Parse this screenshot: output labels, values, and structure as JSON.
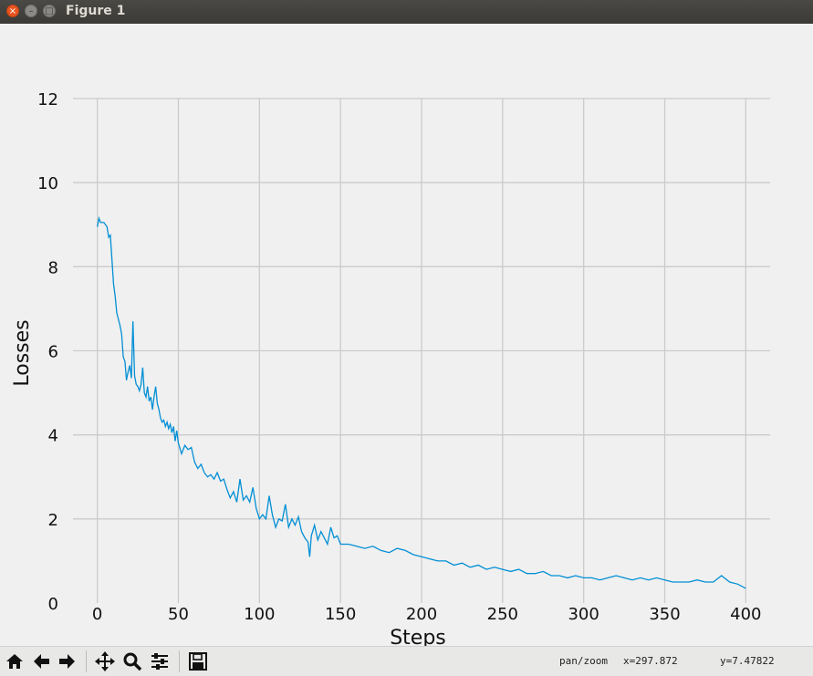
{
  "window": {
    "title": "Figure 1"
  },
  "toolbar": {
    "buttons": [
      "home-icon",
      "back-arrow-icon",
      "forward-arrow-icon",
      "pan-move-icon",
      "zoom-magnifier-icon",
      "configure-subplots-icon",
      "save-icon"
    ],
    "mode": "pan/zoom",
    "x_readout": "x=297.872",
    "y_readout": "y=7.47822"
  },
  "colors": {
    "line": "#008fd5",
    "grid": "#cbcbcb",
    "background": "#f0f0f0"
  },
  "chart_data": {
    "type": "line",
    "xlabel": "Steps",
    "ylabel": "Losses",
    "xlim": [
      -15,
      415
    ],
    "ylim": [
      0,
      12
    ],
    "xticks": [
      0,
      50,
      100,
      150,
      200,
      250,
      300,
      350,
      400
    ],
    "yticks": [
      0,
      2,
      4,
      6,
      8,
      10,
      12
    ],
    "grid": true,
    "series": [
      {
        "points": [
          [
            0,
            8.95
          ],
          [
            1,
            9.15
          ],
          [
            2,
            9.05
          ],
          [
            4,
            9.05
          ],
          [
            6,
            8.95
          ],
          [
            7,
            8.7
          ],
          [
            8,
            8.75
          ],
          [
            9,
            8.2
          ],
          [
            10,
            7.6
          ],
          [
            11,
            7.3
          ],
          [
            12,
            6.9
          ],
          [
            14,
            6.6
          ],
          [
            15,
            6.4
          ],
          [
            16,
            5.85
          ],
          [
            17,
            5.75
          ],
          [
            18,
            5.3
          ],
          [
            19,
            5.5
          ],
          [
            20,
            5.65
          ],
          [
            21,
            5.35
          ],
          [
            22,
            6.7
          ],
          [
            23,
            5.4
          ],
          [
            24,
            5.2
          ],
          [
            25,
            5.15
          ],
          [
            26,
            5.05
          ],
          [
            27,
            5.2
          ],
          [
            28,
            5.6
          ],
          [
            29,
            5.0
          ],
          [
            30,
            4.9
          ],
          [
            31,
            5.15
          ],
          [
            32,
            4.8
          ],
          [
            33,
            4.9
          ],
          [
            34,
            4.6
          ],
          [
            35,
            4.9
          ],
          [
            36,
            5.15
          ],
          [
            37,
            4.75
          ],
          [
            38,
            4.6
          ],
          [
            39,
            4.4
          ],
          [
            40,
            4.3
          ],
          [
            41,
            4.35
          ],
          [
            42,
            4.2
          ],
          [
            43,
            4.3
          ],
          [
            44,
            4.15
          ],
          [
            45,
            4.25
          ],
          [
            46,
            4.05
          ],
          [
            47,
            4.2
          ],
          [
            48,
            3.85
          ],
          [
            49,
            4.1
          ],
          [
            50,
            3.8
          ],
          [
            52,
            3.55
          ],
          [
            54,
            3.75
          ],
          [
            56,
            3.65
          ],
          [
            58,
            3.7
          ],
          [
            60,
            3.35
          ],
          [
            62,
            3.2
          ],
          [
            64,
            3.3
          ],
          [
            66,
            3.1
          ],
          [
            68,
            3.0
          ],
          [
            70,
            3.05
          ],
          [
            72,
            2.95
          ],
          [
            74,
            3.1
          ],
          [
            76,
            2.9
          ],
          [
            78,
            2.95
          ],
          [
            80,
            2.7
          ],
          [
            82,
            2.5
          ],
          [
            84,
            2.65
          ],
          [
            86,
            2.4
          ],
          [
            88,
            2.95
          ],
          [
            90,
            2.45
          ],
          [
            92,
            2.55
          ],
          [
            94,
            2.4
          ],
          [
            96,
            2.75
          ],
          [
            98,
            2.25
          ],
          [
            100,
            2.0
          ],
          [
            102,
            2.1
          ],
          [
            104,
            2.0
          ],
          [
            106,
            2.55
          ],
          [
            108,
            2.1
          ],
          [
            110,
            1.8
          ],
          [
            112,
            2.0
          ],
          [
            114,
            1.95
          ],
          [
            116,
            2.35
          ],
          [
            118,
            1.8
          ],
          [
            120,
            2.0
          ],
          [
            122,
            1.85
          ],
          [
            124,
            2.05
          ],
          [
            126,
            1.7
          ],
          [
            128,
            1.55
          ],
          [
            130,
            1.45
          ],
          [
            131,
            1.1
          ],
          [
            132,
            1.6
          ],
          [
            134,
            1.85
          ],
          [
            136,
            1.5
          ],
          [
            138,
            1.7
          ],
          [
            140,
            1.55
          ],
          [
            142,
            1.4
          ],
          [
            144,
            1.8
          ],
          [
            146,
            1.55
          ],
          [
            148,
            1.6
          ],
          [
            150,
            1.4
          ],
          [
            155,
            1.4
          ],
          [
            160,
            1.35
          ],
          [
            165,
            1.3
          ],
          [
            170,
            1.35
          ],
          [
            175,
            1.25
          ],
          [
            180,
            1.2
          ],
          [
            185,
            1.3
          ],
          [
            190,
            1.25
          ],
          [
            195,
            1.15
          ],
          [
            200,
            1.1
          ],
          [
            205,
            1.05
          ],
          [
            210,
            1.0
          ],
          [
            215,
            1.0
          ],
          [
            220,
            0.9
          ],
          [
            225,
            0.95
          ],
          [
            230,
            0.85
          ],
          [
            235,
            0.9
          ],
          [
            240,
            0.8
          ],
          [
            245,
            0.85
          ],
          [
            250,
            0.8
          ],
          [
            255,
            0.75
          ],
          [
            260,
            0.8
          ],
          [
            265,
            0.7
          ],
          [
            270,
            0.7
          ],
          [
            275,
            0.75
          ],
          [
            280,
            0.65
          ],
          [
            285,
            0.65
          ],
          [
            290,
            0.6
          ],
          [
            295,
            0.65
          ],
          [
            300,
            0.6
          ],
          [
            305,
            0.6
          ],
          [
            310,
            0.55
          ],
          [
            315,
            0.6
          ],
          [
            320,
            0.65
          ],
          [
            325,
            0.6
          ],
          [
            330,
            0.55
          ],
          [
            335,
            0.6
          ],
          [
            340,
            0.55
          ],
          [
            345,
            0.6
          ],
          [
            350,
            0.55
          ],
          [
            355,
            0.5
          ],
          [
            360,
            0.5
          ],
          [
            365,
            0.5
          ],
          [
            370,
            0.55
          ],
          [
            375,
            0.5
          ],
          [
            380,
            0.5
          ],
          [
            385,
            0.65
          ],
          [
            390,
            0.5
          ],
          [
            395,
            0.45
          ],
          [
            400,
            0.35
          ]
        ]
      }
    ]
  }
}
